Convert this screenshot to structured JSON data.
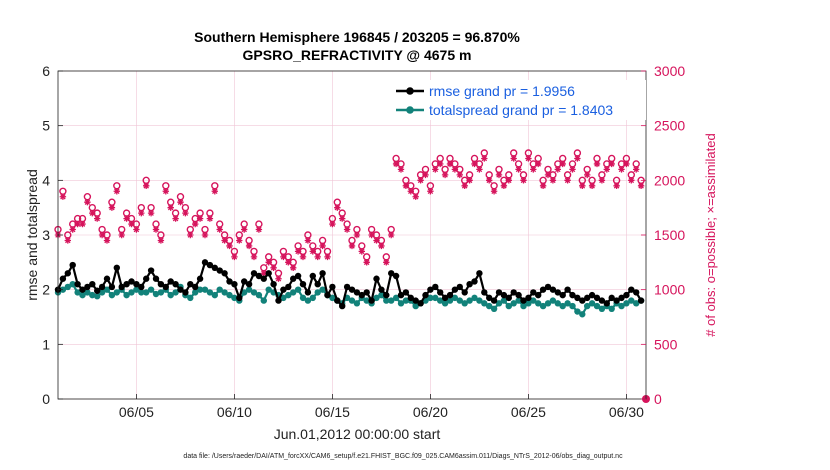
{
  "chart_data": {
    "type": "line",
    "title": "Southern Hemisphere 196845 / 203205 = 96.870%",
    "subtitle": "GPSRO_REFRACTIVITY @ 4675 m",
    "xlabel": "Jun.01,2012 00:00:00 start",
    "ylabel_left": "rmse and totalspread",
    "ylabel_right": "# of obs: o=possible; ×=assimilated",
    "footnote": "data file: /Users/raeder/DAI/ATM_forcXX/CAM6_setup/f.e21.FHIST_BGC.f09_025.CAM6assim.011/Diags_NTrS_2012-06/obs_diag_output.nc",
    "xlim": [
      1,
      31
    ],
    "ylim_left": [
      0,
      6
    ],
    "ylim_right": [
      0,
      3000
    ],
    "xticks": [
      5,
      10,
      15,
      20,
      25,
      30
    ],
    "xtick_labels": [
      "06/05",
      "06/10",
      "06/15",
      "06/20",
      "06/25",
      "06/30"
    ],
    "yticks_left": [
      0,
      1,
      2,
      3,
      4,
      5,
      6
    ],
    "yticks_right": [
      0,
      500,
      1000,
      1500,
      2000,
      2500,
      3000
    ],
    "legend": [
      "rmse grand pr = 1.9956",
      "totalspread grand pr = 1.8403"
    ],
    "x": [
      1.0,
      1.25,
      1.5,
      1.75,
      2.0,
      2.25,
      2.5,
      2.75,
      3.0,
      3.25,
      3.5,
      3.75,
      4.0,
      4.25,
      4.5,
      4.75,
      5.0,
      5.25,
      5.5,
      5.75,
      6.0,
      6.25,
      6.5,
      6.75,
      7.0,
      7.25,
      7.5,
      7.75,
      8.0,
      8.25,
      8.5,
      8.75,
      9.0,
      9.25,
      9.5,
      9.75,
      10.0,
      10.25,
      10.5,
      10.75,
      11.0,
      11.25,
      11.5,
      11.75,
      12.0,
      12.25,
      12.5,
      12.75,
      13.0,
      13.25,
      13.5,
      13.75,
      14.0,
      14.25,
      14.5,
      14.75,
      15.0,
      15.25,
      15.5,
      15.75,
      16.0,
      16.25,
      16.5,
      16.75,
      17.0,
      17.25,
      17.5,
      17.75,
      18.0,
      18.25,
      18.5,
      18.75,
      19.0,
      19.25,
      19.5,
      19.75,
      20.0,
      20.25,
      20.5,
      20.75,
      21.0,
      21.25,
      21.5,
      21.75,
      22.0,
      22.25,
      22.5,
      22.75,
      23.0,
      23.25,
      23.5,
      23.75,
      24.0,
      24.25,
      24.5,
      24.75,
      25.0,
      25.25,
      25.5,
      25.75,
      26.0,
      26.25,
      26.5,
      26.75,
      27.0,
      27.25,
      27.5,
      27.75,
      28.0,
      28.25,
      28.5,
      28.75,
      29.0,
      29.25,
      29.5,
      29.75,
      30.0,
      30.25,
      30.5,
      30.75
    ],
    "series": [
      {
        "name": "rmse",
        "axis": "left",
        "color": "#000000",
        "values": [
          2.0,
          2.2,
          2.3,
          2.45,
          2.1,
          2.0,
          2.05,
          2.1,
          1.98,
          2.05,
          2.2,
          2.05,
          2.4,
          2.05,
          2.1,
          2.15,
          2.1,
          2.05,
          2.2,
          2.35,
          2.2,
          2.1,
          2.05,
          2.15,
          2.1,
          2.0,
          1.95,
          2.1,
          2.05,
          2.2,
          2.5,
          2.45,
          2.4,
          2.35,
          2.3,
          2.15,
          2.1,
          1.85,
          2.15,
          2.1,
          2.3,
          2.25,
          2.2,
          2.3,
          2.1,
          1.8,
          2.0,
          2.05,
          2.2,
          2.25,
          2.1,
          1.95,
          2.25,
          2.1,
          2.3,
          1.9,
          2.05,
          1.8,
          1.7,
          2.05,
          2.0,
          1.95,
          1.9,
          1.95,
          1.8,
          2.2,
          2.0,
          1.9,
          2.3,
          2.25,
          1.9,
          1.95,
          1.85,
          1.8,
          1.75,
          1.9,
          2.0,
          2.05,
          1.95,
          1.85,
          1.9,
          2.0,
          2.05,
          1.95,
          2.1,
          2.15,
          2.3,
          1.95,
          1.85,
          1.8,
          1.95,
          1.9,
          1.85,
          1.95,
          1.9,
          1.8,
          1.85,
          1.95,
          1.9,
          2.0,
          2.05,
          2.0,
          1.95,
          1.9,
          2.0,
          1.9,
          1.85,
          1.8,
          1.85,
          1.9,
          1.85,
          1.8,
          1.75,
          1.85,
          1.8,
          1.85,
          1.9,
          2.0,
          1.95,
          1.8
        ]
      },
      {
        "name": "totalspread",
        "axis": "left",
        "color": "#12827a",
        "values": [
          1.95,
          2.0,
          2.05,
          2.1,
          1.95,
          1.9,
          1.95,
          1.9,
          1.88,
          1.95,
          2.0,
          1.9,
          1.95,
          2.0,
          1.9,
          1.95,
          2.0,
          1.95,
          1.95,
          2.0,
          1.92,
          1.95,
          2.0,
          1.9,
          1.95,
          2.05,
          1.9,
          1.85,
          1.95,
          2.0,
          2.0,
          1.95,
          1.9,
          2.0,
          1.95,
          1.9,
          1.85,
          1.8,
          1.95,
          2.0,
          1.95,
          1.9,
          1.8,
          2.0,
          1.95,
          1.9,
          1.85,
          1.9,
          1.95,
          2.0,
          1.85,
          1.8,
          1.85,
          1.95,
          2.0,
          1.9,
          1.85,
          1.8,
          1.75,
          1.85,
          1.8,
          1.75,
          1.85,
          1.8,
          1.75,
          1.85,
          1.9,
          1.8,
          1.8,
          1.85,
          1.75,
          1.8,
          1.8,
          1.7,
          1.75,
          1.8,
          1.85,
          1.85,
          1.8,
          1.75,
          1.8,
          1.85,
          1.8,
          1.75,
          1.8,
          1.85,
          1.8,
          1.75,
          1.7,
          1.65,
          1.75,
          1.8,
          1.7,
          1.75,
          1.8,
          1.7,
          1.75,
          1.8,
          1.75,
          1.7,
          1.75,
          1.8,
          1.75,
          1.7,
          1.75,
          1.7,
          1.6,
          1.55,
          1.7,
          1.75,
          1.7,
          1.65,
          1.7,
          1.65,
          1.75,
          1.7,
          1.75,
          1.8,
          1.75,
          1.8
        ]
      },
      {
        "name": "possible",
        "axis": "right",
        "color": "#d6145c",
        "values": [
          1550,
          1900,
          1500,
          1600,
          1650,
          1650,
          1850,
          1750,
          1700,
          1550,
          1500,
          1800,
          1950,
          1550,
          1700,
          1650,
          1600,
          1750,
          2000,
          1750,
          1600,
          1500,
          1950,
          1800,
          1700,
          1850,
          1750,
          1550,
          1650,
          1700,
          1550,
          1700,
          1950,
          1600,
          1500,
          1450,
          1350,
          1500,
          1600,
          1450,
          1350,
          1600,
          1200,
          1300,
          1250,
          1150,
          1350,
          1300,
          1250,
          1400,
          1350,
          1500,
          1400,
          1350,
          1450,
          1350,
          1650,
          1800,
          1700,
          1600,
          1450,
          1550,
          1400,
          1300,
          1550,
          1500,
          1450,
          1300,
          1550,
          2200,
          2150,
          2000,
          1950,
          1900,
          2050,
          2100,
          1950,
          2150,
          2200,
          2100,
          2200,
          2150,
          2100,
          2000,
          2050,
          2200,
          2150,
          2250,
          2050,
          1950,
          2100,
          2000,
          2050,
          2250,
          2150,
          2050,
          2250,
          2150,
          2200,
          2000,
          2100,
          2050,
          2150,
          2200,
          2050,
          2150,
          2250,
          2000,
          2100,
          2000,
          2200,
          2050,
          2150,
          2200,
          2000,
          2150,
          2200,
          2050,
          2150,
          2000
        ]
      },
      {
        "name": "assimilated",
        "axis": "right",
        "color": "#d6145c",
        "values": [
          1500,
          1850,
          1450,
          1550,
          1600,
          1600,
          1800,
          1700,
          1650,
          1500,
          1450,
          1750,
          1900,
          1500,
          1650,
          1600,
          1550,
          1700,
          1950,
          1700,
          1550,
          1450,
          1900,
          1750,
          1650,
          1800,
          1700,
          1500,
          1600,
          1650,
          1500,
          1650,
          1900,
          1550,
          1450,
          1400,
          1300,
          1450,
          1550,
          1400,
          1300,
          1550,
          1150,
          1250,
          1200,
          1100,
          1300,
          1250,
          1200,
          1350,
          1300,
          1450,
          1350,
          1300,
          1400,
          1300,
          1600,
          1750,
          1650,
          1550,
          1400,
          1500,
          1350,
          1250,
          1500,
          1450,
          1400,
          1250,
          1500,
          2150,
          2100,
          1950,
          1900,
          1850,
          2000,
          2050,
          1900,
          2100,
          2150,
          2050,
          2150,
          2100,
          2050,
          1950,
          2000,
          2150,
          2100,
          2200,
          2000,
          1900,
          2050,
          1950,
          2000,
          2200,
          2100,
          2000,
          2200,
          2100,
          2150,
          1950,
          2050,
          2000,
          2100,
          2150,
          2000,
          2100,
          2200,
          1950,
          2050,
          1950,
          2150,
          2000,
          2100,
          2150,
          1950,
          2100,
          2150,
          2000,
          2100,
          1950
        ]
      }
    ]
  }
}
